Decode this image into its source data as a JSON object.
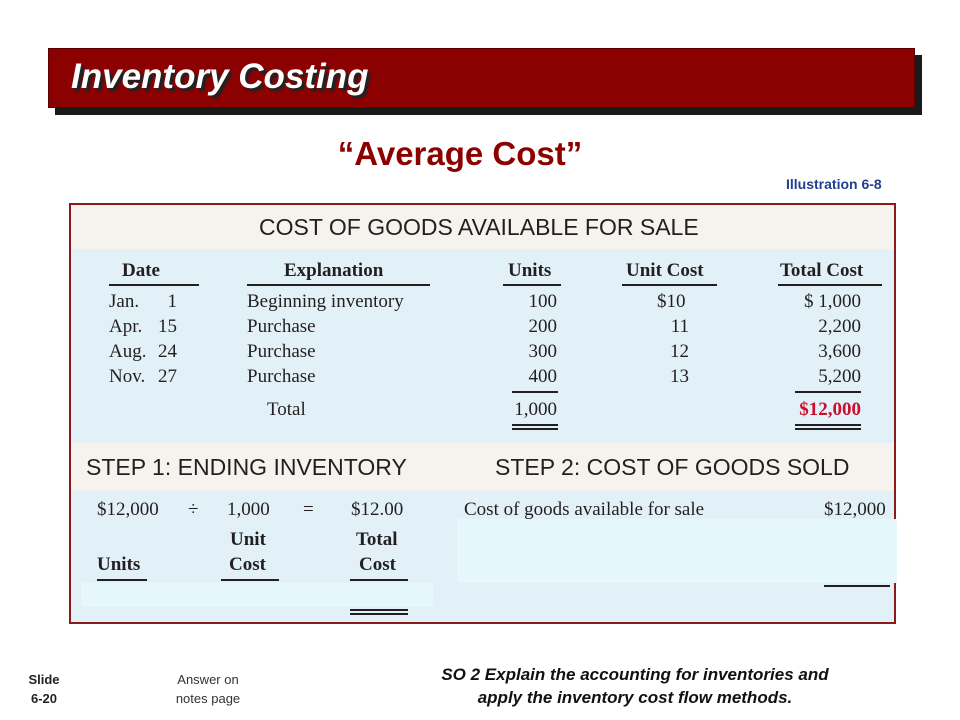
{
  "slide": {
    "title": "Inventory Costing",
    "subtitle": "“Average Cost”",
    "illustration": "Illustration 6-8"
  },
  "table1": {
    "heading": "COST OF GOODS AVAILABLE FOR SALE",
    "headers": {
      "date": "Date",
      "explanation": "Explanation",
      "units": "Units",
      "unit_cost": "Unit Cost",
      "total_cost": "Total Cost"
    },
    "rows": [
      {
        "month": "Jan.",
        "day": "1",
        "explanation": "Beginning inventory",
        "units": "100",
        "unit_cost": "$10",
        "total_cost": "$ 1,000"
      },
      {
        "month": "Apr.",
        "day": "15",
        "explanation": "Purchase",
        "units": "200",
        "unit_cost": "11",
        "total_cost": "2,200"
      },
      {
        "month": "Aug.",
        "day": "24",
        "explanation": "Purchase",
        "units": "300",
        "unit_cost": "12",
        "total_cost": "3,600"
      },
      {
        "month": "Nov.",
        "day": "27",
        "explanation": "Purchase",
        "units": "400",
        "unit_cost": "13",
        "total_cost": "5,200"
      }
    ],
    "total": {
      "label": "Total",
      "units": "1,000",
      "total_cost": "$12,000"
    }
  },
  "step1": {
    "heading": "STEP 1: ENDING INVENTORY",
    "calc": {
      "numerator": "$12,000",
      "divide": "÷",
      "denominator": "1,000",
      "equals": "=",
      "result": "$12.00"
    },
    "headers": {
      "units": "Units",
      "unit_1": "Unit",
      "unit_2": "Cost",
      "total_1": "Total",
      "total_2": "Cost"
    }
  },
  "step2": {
    "heading": "STEP 2: COST OF GOODS SOLD",
    "line1_label": "Cost of goods available for sale",
    "line1_value": "$12,000"
  },
  "footer": {
    "slide_label": "Slide",
    "slide_number": "6-20",
    "answer_1": "Answer on",
    "answer_2": "notes page",
    "so_line1": "SO 2  Explain the accounting for inventories and",
    "so_line2": "apply the inventory cost flow methods."
  },
  "colors": {
    "title_bar": "#8b0000",
    "panel_bg": "#e1f1f7",
    "band_bg": "#f6f3ee",
    "highlight": "#c8102e"
  }
}
